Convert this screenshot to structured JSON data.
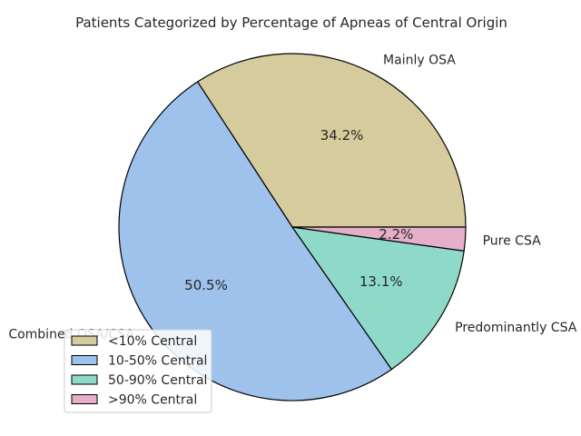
{
  "chart_data": {
    "type": "pie",
    "title": "Patients Categorized by Percentage of Apneas of Central Origin",
    "slices": [
      {
        "label": "Mainly OSA",
        "legend": "<10% Central",
        "value": 34.2,
        "pct_label": "34.2%",
        "color": "#d6cb9c"
      },
      {
        "label": "Combined OSA/CSA",
        "legend": "10-50% Central",
        "value": 50.5,
        "pct_label": "50.5%",
        "color": "#9fc2ec"
      },
      {
        "label": "Predominantly CSA",
        "legend": "50-90% Central",
        "value": 13.1,
        "pct_label": "13.1%",
        "color": "#8fd9c8"
      },
      {
        "label": "Pure CSA",
        "legend": ">90% Central",
        "value": 2.2,
        "pct_label": "2.2%",
        "color": "#e5aec9"
      }
    ],
    "start_angle": "right",
    "direction": "counterclockwise",
    "legend_position": "lower left"
  }
}
